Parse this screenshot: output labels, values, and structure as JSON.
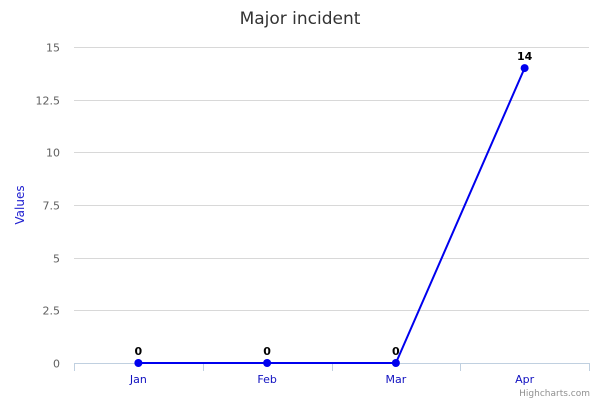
{
  "chart_data": {
    "type": "line",
    "title": "Major incident",
    "xlabel": "",
    "ylabel": "Values",
    "categories": [
      "Jan",
      "Feb",
      "Mar",
      "Apr"
    ],
    "series": [
      {
        "values": [
          0,
          0,
          0,
          14
        ],
        "color": "#0000ee"
      }
    ],
    "ylim": [
      0,
      15
    ],
    "yticks": [
      0,
      2.5,
      5,
      7.5,
      10,
      12.5,
      15
    ],
    "ytick_labels": [
      "0",
      "2.5",
      "5",
      "7.5",
      "10",
      "12.5",
      "15"
    ],
    "grid": true,
    "legend": "none",
    "data_labels": true
  },
  "credit": "Highcharts.com"
}
